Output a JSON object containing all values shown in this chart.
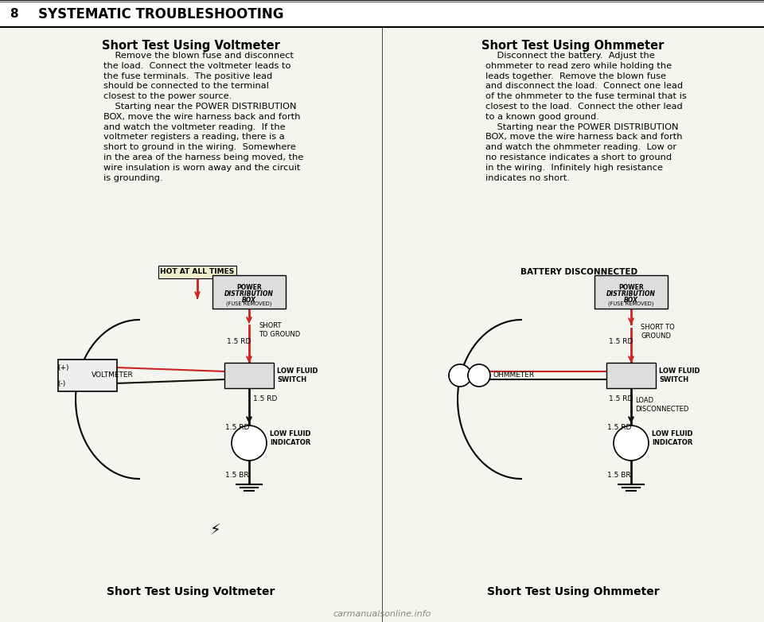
{
  "page_number": "8",
  "header_title": "SYSTEMATIC TROUBLESHOOTING",
  "bg_color": "#f5f5f0",
  "header_bg": "#ffffff",
  "left_section_title": "Short Test Using Voltmeter",
  "left_para1": "    Remove the blown fuse and disconnect\nthe load.  Connect the voltmeter leads to\nthe fuse terminals.  The positive lead\nshould be connected to the terminal\nclosest to the power source.\n    Starting near the POWER DISTRIBUTION\nBOX, move the wire harness back and forth\nand watch the voltmeter reading.  If the\nvoltmeter registers a reading, there is a\nshort to ground in the wiring.  Somewhere\nin the area of the harness being moved, the\nwire insulation is worn away and the circuit\nis grounding.",
  "right_section_title": "Short Test Using Ohmmeter",
  "right_para1": "    Disconnect the battery.  Adjust the\nohmmeter to read zero while holding the\nleads together.  Remove the blown fuse\nand disconnect the load.  Connect one lead\nof the ohmmeter to the fuse terminal that is\nclosest to the load.  Connect the other lead\nto a known good ground.\n    Starting near the POWER DISTRIBUTION\nBOX, move the wire harness back and forth\nand watch the ohmmeter reading.  Low or\nno resistance indicates a short to ground\nin the wiring.  Infinitely high resistance\nindicates no short.",
  "left_diagram_label": "Short Test Using Voltmeter",
  "right_diagram_label": "Short Test Using Ohmmeter",
  "footer_text": "carmanualsonline.info",
  "left_hot_label": "HOT AT ALL TIMES",
  "right_battery_label": "BATTERY DISCONNECTED",
  "power_dist_label": "POWER\nDISTRIBUTION\nBOX\n(FUSE REMOVED)",
  "short_to_ground_label": "SHORT\nTO GROUND",
  "low_fluid_switch_label": "LOW FLUID\nSWITCH",
  "load_disconnected_label": "LOAD\nDISCONNECTED",
  "low_fluid_indicator_label": "LOW FLUID\nINDICATOR",
  "voltmeter_label": "VOLTMETER",
  "ohmmeter_label": "OHMMETER",
  "res_1_5_label": "1.5 RD",
  "res_1_5br_label": "1.5 BR",
  "wire_color_rd": "#cc0000",
  "wire_color_bk": "#111111",
  "box_fill": "#ffffff",
  "box_edge": "#111111"
}
